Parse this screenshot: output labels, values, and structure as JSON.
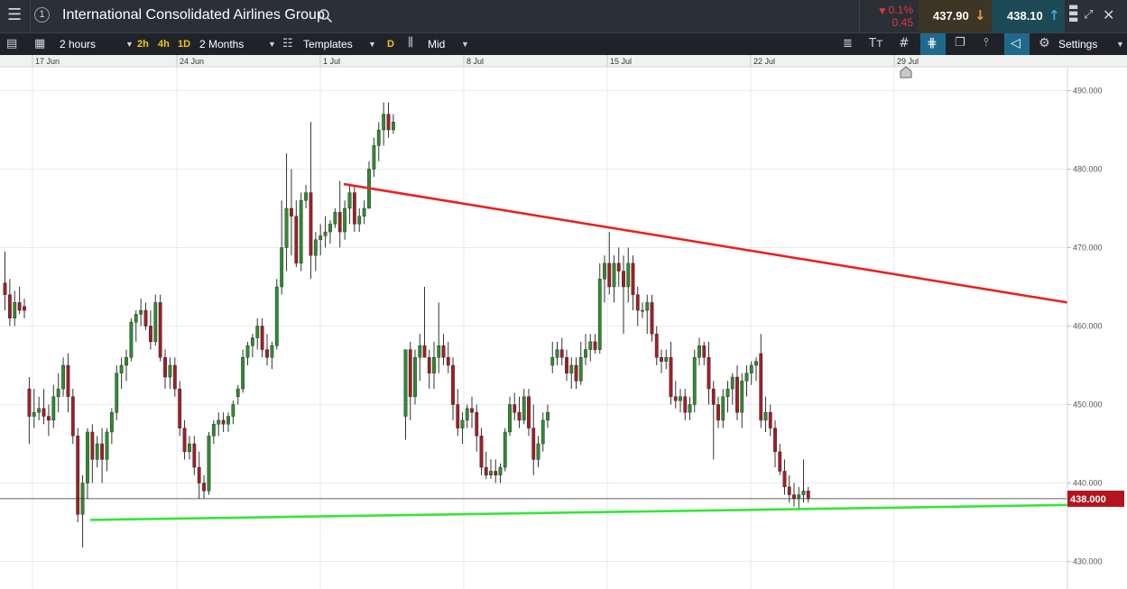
{
  "header": {
    "menu_icon": "hamburger-icon",
    "info_badge": "1",
    "instrument_name": "International Consolidated Airlines Group",
    "search_icon": "search-icon",
    "change_pct": "0.1%",
    "change_abs": "0.45",
    "sell_price": "437.90",
    "buy_price": "438.10",
    "colors": {
      "sell_bg": "#3d3526",
      "buy_bg": "#1c4a55",
      "change_red": "#e2373a",
      "sell_arrow": "#e8a33a",
      "buy_arrow": "#4aa8d8"
    }
  },
  "toolbar": {
    "interval": "2 hours",
    "quick_2h": "2h",
    "quick_4h": "4h",
    "quick_1d": "1D",
    "period": "2 Months",
    "templates": "Templates",
    "daily_badge": "D",
    "price_type": "Mid",
    "settings": "Settings"
  },
  "chart_data": {
    "type": "candlestick",
    "y_range": [
      426.5,
      490.5
    ],
    "y_ticks": [
      "490.000",
      "480.000",
      "470.000",
      "460.000",
      "450.000",
      "440.000",
      "430.000"
    ],
    "x_ticks": [
      "17 Jun",
      "24 Jun",
      "1 Jul",
      "8 Jul",
      "15 Jul",
      "22 Jul",
      "29 Jul"
    ],
    "current_price_label": "438.000",
    "current_price": 438.0,
    "trendlines": [
      {
        "color": "#e8231f",
        "from_date": "2 Jul",
        "from": 478.1,
        "to_date": "beyond 29 Jul",
        "to": 463.0
      },
      {
        "color": "#35e63a",
        "from_date": "19 Jun",
        "from": 435.3,
        "to_date": "beyond 29 Jul",
        "to": 437.2
      }
    ],
    "colors": {
      "up": "#2e8b2e",
      "down": "#a01e28",
      "grid": "#e6e6e6",
      "current_price_bg": "#b4141e"
    },
    "candles": [
      [
        465.5,
        469.5,
        462.0,
        464.0
      ],
      [
        464.0,
        466.0,
        460.0,
        461.0
      ],
      [
        461.0,
        464.5,
        460.0,
        463.0
      ],
      [
        463.0,
        465.0,
        461.5,
        462.0
      ],
      [
        462.5,
        463.5,
        461.0,
        462.0
      ],
      [
        452.0,
        453.5,
        445.0,
        448.5
      ],
      [
        448.5,
        452.0,
        447.0,
        449.0
      ],
      [
        449.0,
        451.0,
        448.0,
        449.5
      ],
      [
        449.5,
        452.0,
        447.5,
        448.5
      ],
      [
        448.5,
        450.0,
        446.0,
        448.0
      ],
      [
        448.0,
        452.5,
        447.0,
        451.0
      ],
      [
        451.0,
        454.0,
        449.0,
        452.0
      ],
      [
        452.0,
        456.0,
        451.0,
        455.0
      ],
      [
        455.0,
        456.5,
        449.0,
        451.0
      ],
      [
        451.0,
        452.0,
        445.0,
        446.0
      ],
      [
        446.0,
        447.0,
        435.0,
        436.0
      ],
      [
        436.0,
        441.0,
        431.8,
        440.0
      ],
      [
        440.0,
        447.0,
        438.0,
        446.5
      ],
      [
        446.5,
        447.5,
        440.0,
        443.0
      ],
      [
        443.0,
        446.0,
        442.0,
        445.0
      ],
      [
        445.0,
        447.0,
        440.0,
        443.0
      ],
      [
        443.0,
        447.0,
        441.5,
        446.5
      ],
      [
        446.5,
        449.5,
        445.0,
        449.0
      ],
      [
        449.0,
        455.0,
        448.0,
        454.0
      ],
      [
        454.0,
        456.0,
        452.0,
        455.0
      ],
      [
        455.0,
        457.0,
        453.0,
        456.0
      ],
      [
        456.0,
        461.0,
        455.5,
        460.5
      ],
      [
        460.5,
        462.0,
        458.0,
        461.5
      ],
      [
        461.5,
        463.5,
        460.0,
        462.0
      ],
      [
        462.0,
        463.0,
        459.5,
        460.0
      ],
      [
        460.0,
        462.0,
        457.0,
        458.0
      ],
      [
        458.0,
        464.0,
        457.5,
        463.0
      ],
      [
        463.0,
        464.0,
        455.5,
        456.0
      ],
      [
        456.0,
        457.0,
        452.0,
        453.5
      ],
      [
        453.5,
        456.0,
        452.0,
        455.0
      ],
      [
        455.0,
        456.0,
        451.0,
        452.0
      ],
      [
        452.0,
        453.0,
        446.0,
        447.0
      ],
      [
        447.0,
        448.0,
        443.0,
        444.0
      ],
      [
        444.0,
        446.0,
        443.0,
        445.0
      ],
      [
        445.0,
        446.0,
        441.0,
        442.0
      ],
      [
        442.0,
        444.0,
        438.0,
        440.0
      ],
      [
        440.0,
        441.0,
        438.0,
        439.0
      ],
      [
        439.0,
        446.5,
        438.5,
        446.0
      ],
      [
        446.0,
        448.0,
        445.0,
        447.5
      ],
      [
        447.5,
        449.0,
        446.0,
        448.0
      ],
      [
        448.0,
        449.0,
        446.5,
        447.5
      ],
      [
        447.5,
        449.0,
        446.5,
        448.5
      ],
      [
        448.5,
        450.5,
        447.5,
        450.0
      ],
      [
        451.0,
        452.5,
        450.0,
        452.0
      ],
      [
        452.0,
        457.0,
        451.5,
        456.0
      ],
      [
        456.0,
        458.0,
        455.0,
        457.5
      ],
      [
        457.5,
        459.0,
        456.0,
        458.5
      ],
      [
        458.5,
        461.0,
        457.0,
        460.0
      ],
      [
        460.0,
        461.0,
        456.0,
        457.0
      ],
      [
        457.0,
        459.0,
        455.0,
        456.0
      ],
      [
        456.0,
        458.0,
        454.5,
        457.5
      ],
      [
        457.5,
        466.0,
        457.0,
        465.0
      ],
      [
        465.0,
        476.0,
        464.0,
        470.0
      ],
      [
        470.0,
        482.0,
        467.0,
        475.0
      ],
      [
        475.0,
        480.0,
        469.0,
        474.0
      ],
      [
        474.0,
        476.0,
        467.5,
        468.0
      ],
      [
        468.0,
        477.0,
        467.0,
        476.0
      ],
      [
        476.0,
        478.0,
        475.0,
        477.0
      ],
      [
        477.0,
        486.0,
        466.0,
        469.0
      ],
      [
        469.0,
        472.0,
        467.0,
        471.0
      ],
      [
        471.0,
        473.0,
        469.0,
        471.5
      ],
      [
        471.5,
        474.0,
        470.0,
        472.0
      ],
      [
        472.0,
        473.5,
        470.5,
        473.0
      ],
      [
        473.0,
        475.0,
        472.5,
        474.5
      ],
      [
        474.5,
        478.5,
        470.0,
        472.0
      ],
      [
        472.0,
        476.0,
        471.0,
        475.0
      ],
      [
        475.0,
        478.0,
        473.0,
        477.0
      ],
      [
        477.0,
        478.0,
        472.0,
        473.0
      ],
      [
        473.0,
        475.0,
        472.0,
        474.0
      ],
      [
        474.0,
        476.0,
        473.0,
        475.0
      ],
      [
        475.0,
        481.0,
        475.0,
        480.0
      ],
      [
        480.0,
        484.0,
        479.0,
        483.0
      ],
      [
        483.0,
        486.0,
        481.0,
        485.0
      ],
      [
        485.0,
        488.5,
        483.0,
        487.0
      ],
      [
        487.0,
        488.5,
        484.0,
        485.0
      ],
      [
        485.0,
        487.0,
        484.5,
        486.0
      ],
      [
        448.5,
        457.0,
        445.5,
        457.0
      ],
      [
        457.0,
        458.0,
        448.0,
        451.0
      ],
      [
        451.0,
        457.0,
        450.0,
        456.0
      ],
      [
        456.0,
        459.0,
        453.0,
        457.5
      ],
      [
        457.5,
        465.0,
        456.0,
        456.0
      ],
      [
        456.0,
        457.0,
        452.0,
        454.0
      ],
      [
        454.0,
        458.0,
        452.0,
        456.0
      ],
      [
        456.0,
        463.0,
        454.0,
        457.5
      ],
      [
        457.5,
        459.0,
        455.0,
        456.0
      ],
      [
        456.0,
        458.0,
        454.0,
        455.0
      ],
      [
        455.0,
        456.0,
        448.0,
        450.0
      ],
      [
        450.0,
        452.0,
        446.0,
        447.0
      ],
      [
        447.0,
        449.0,
        445.0,
        448.0
      ],
      [
        448.0,
        450.0,
        447.0,
        449.5
      ],
      [
        449.5,
        451.0,
        447.0,
        449.0
      ],
      [
        449.0,
        450.0,
        444.0,
        446.0
      ],
      [
        446.0,
        447.0,
        441.0,
        442.0
      ],
      [
        442.0,
        444.0,
        440.5,
        441.0
      ],
      [
        441.0,
        443.0,
        440.5,
        441.5
      ],
      [
        441.5,
        443.0,
        440.0,
        441.0
      ],
      [
        441.0,
        442.5,
        440.0,
        442.0
      ],
      [
        442.0,
        447.0,
        441.5,
        446.5
      ],
      [
        446.5,
        451.0,
        446.0,
        450.0
      ],
      [
        450.0,
        451.5,
        448.0,
        449.0
      ],
      [
        449.0,
        451.0,
        447.0,
        448.0
      ],
      [
        448.0,
        452.0,
        447.5,
        451.0
      ],
      [
        451.0,
        452.0,
        446.0,
        447.0
      ],
      [
        447.0,
        450.0,
        441.0,
        443.0
      ],
      [
        443.0,
        446.0,
        442.0,
        445.0
      ],
      [
        445.0,
        449.0,
        444.0,
        448.0
      ],
      [
        448.0,
        450.0,
        447.0,
        449.0
      ],
      [
        455.0,
        458.0,
        454.0,
        456.0
      ],
      [
        456.0,
        458.0,
        455.0,
        457.0
      ],
      [
        457.0,
        458.5,
        455.0,
        456.0
      ],
      [
        456.0,
        457.0,
        453.0,
        454.0
      ],
      [
        454.0,
        456.0,
        452.0,
        455.0
      ],
      [
        455.0,
        456.0,
        452.0,
        453.0
      ],
      [
        453.0,
        458.0,
        452.5,
        456.0
      ],
      [
        456.0,
        459.0,
        455.0,
        457.0
      ],
      [
        457.0,
        459.0,
        455.5,
        458.0
      ],
      [
        458.0,
        459.0,
        456.5,
        457.0
      ],
      [
        457.0,
        468.0,
        456.5,
        466.0
      ],
      [
        466.0,
        469.0,
        463.0,
        468.0
      ],
      [
        468.0,
        472.0,
        464.0,
        465.0
      ],
      [
        465.0,
        469.0,
        463.0,
        468.0
      ],
      [
        468.0,
        470.0,
        465.0,
        467.0
      ],
      [
        467.0,
        469.0,
        459.0,
        465.0
      ],
      [
        465.0,
        470.0,
        463.0,
        468.0
      ],
      [
        468.0,
        469.0,
        462.0,
        464.0
      ],
      [
        464.0,
        465.0,
        460.0,
        462.0
      ],
      [
        462.0,
        463.0,
        461.0,
        462.0
      ],
      [
        462.0,
        464.0,
        459.0,
        463.0
      ],
      [
        463.0,
        464.0,
        458.0,
        459.0
      ],
      [
        459.0,
        460.0,
        455.0,
        456.0
      ],
      [
        456.0,
        457.0,
        454.0,
        455.5
      ],
      [
        455.5,
        457.0,
        454.5,
        456.0
      ],
      [
        456.0,
        458.0,
        450.0,
        451.0
      ],
      [
        451.0,
        453.0,
        449.5,
        450.5
      ],
      [
        450.5,
        452.0,
        449.0,
        451.0
      ],
      [
        451.0,
        452.0,
        448.0,
        449.0
      ],
      [
        449.0,
        451.0,
        448.0,
        450.0
      ],
      [
        450.0,
        457.0,
        449.0,
        456.0
      ],
      [
        456.0,
        458.5,
        455.0,
        457.5
      ],
      [
        457.5,
        458.0,
        455.0,
        456.0
      ],
      [
        456.0,
        458.0,
        450.0,
        452.0
      ],
      [
        452.0,
        453.0,
        443.0,
        450.0
      ],
      [
        450.0,
        451.0,
        447.0,
        448.0
      ],
      [
        448.0,
        452.0,
        447.0,
        451.0
      ],
      [
        451.0,
        453.0,
        449.0,
        452.0
      ],
      [
        452.0,
        454.0,
        450.0,
        453.5
      ],
      [
        453.5,
        455.0,
        448.0,
        449.0
      ],
      [
        449.0,
        454.0,
        447.0,
        453.0
      ],
      [
        453.0,
        455.0,
        451.0,
        454.0
      ],
      [
        454.0,
        455.5,
        452.5,
        455.0
      ],
      [
        455.0,
        456.0,
        453.0,
        455.5
      ],
      [
        456.5,
        459.0,
        447.0,
        448.0
      ],
      [
        448.0,
        451.0,
        446.5,
        449.0
      ],
      [
        449.0,
        450.0,
        446.0,
        447.0
      ],
      [
        447.0,
        448.0,
        442.0,
        444.0
      ],
      [
        444.0,
        445.0,
        441.0,
        441.5
      ],
      [
        441.5,
        443.0,
        438.5,
        439.5
      ],
      [
        439.5,
        441.0,
        437.5,
        438.5
      ],
      [
        438.5,
        440.0,
        437.0,
        438.0
      ],
      [
        438.0,
        439.5,
        436.5,
        438.5
      ],
      [
        438.5,
        443.0,
        437.5,
        439.0
      ],
      [
        439.0,
        439.5,
        437.5,
        438.0
      ]
    ]
  }
}
